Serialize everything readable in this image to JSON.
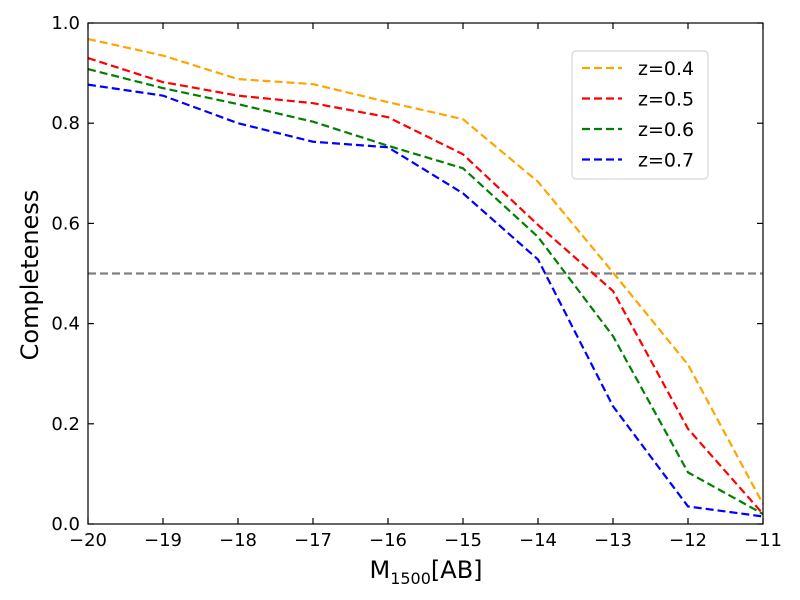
{
  "chart_data": {
    "type": "line",
    "title": "",
    "xlabel_main": "M",
    "xlabel_sub": "1500",
    "xlabel_suffix": "[AB]",
    "ylabel": "Completeness",
    "xlim": [
      -20,
      -11
    ],
    "ylim": [
      0.0,
      1.0
    ],
    "xticks": [
      -20,
      -19,
      -18,
      -17,
      -16,
      -15,
      -14,
      -13,
      -12,
      -11
    ],
    "xtick_labels": [
      "−20",
      "−19",
      "−18",
      "−17",
      "−16",
      "−15",
      "−14",
      "−13",
      "−12",
      "−11"
    ],
    "yticks": [
      0.0,
      0.2,
      0.4,
      0.6,
      0.8,
      1.0
    ],
    "ytick_labels": [
      "0.0",
      "0.2",
      "0.4",
      "0.6",
      "0.8",
      "1.0"
    ],
    "x": [
      -20,
      -19,
      -18,
      -17,
      -16,
      -15,
      -14,
      -13,
      -12,
      -11
    ],
    "series": [
      {
        "name": "z=0.4",
        "color": "#ffa500",
        "values": [
          0.968,
          0.935,
          0.888,
          0.878,
          0.842,
          0.808,
          0.683,
          0.502,
          0.318,
          0.04
        ]
      },
      {
        "name": "z=0.5",
        "color": "#ff0000",
        "values": [
          0.93,
          0.882,
          0.855,
          0.84,
          0.812,
          0.738,
          0.597,
          0.465,
          0.19,
          0.02
        ]
      },
      {
        "name": "z=0.6",
        "color": "#008000",
        "values": [
          0.908,
          0.87,
          0.838,
          0.803,
          0.755,
          0.71,
          0.573,
          0.375,
          0.103,
          0.02
        ]
      },
      {
        "name": "z=0.7",
        "color": "#0000ff",
        "values": [
          0.877,
          0.855,
          0.8,
          0.763,
          0.752,
          0.66,
          0.528,
          0.235,
          0.035,
          0.015
        ]
      }
    ],
    "reference_line": {
      "y": 0.5,
      "color": "#808080",
      "style": "dashed"
    },
    "legend_position": "top-right",
    "grid": false
  }
}
